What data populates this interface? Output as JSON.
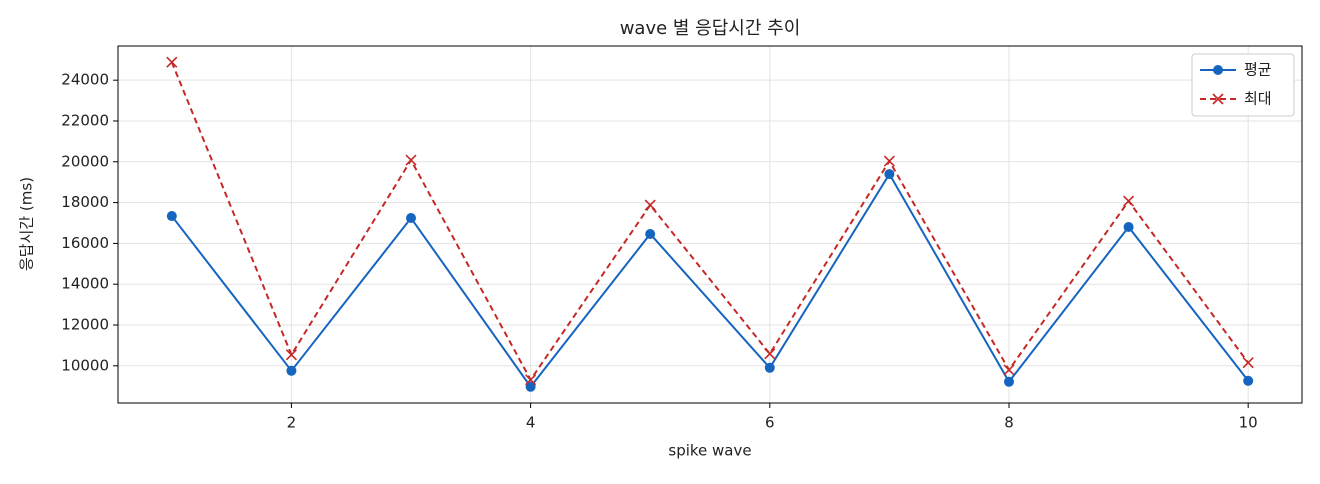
{
  "chart_data": {
    "type": "line",
    "title": "wave 별 응답시간 추이",
    "xlabel": "spike wave",
    "ylabel": "응답시간 (ms)",
    "x": [
      1,
      2,
      3,
      4,
      5,
      6,
      7,
      8,
      9,
      10
    ],
    "series": [
      {
        "name": "평균",
        "color": "#1565c0",
        "marker": "circle",
        "dashed": false,
        "values": [
          17340,
          9755,
          17244,
          8972,
          16461,
          9902,
          19398,
          9217,
          16804,
          9266
        ]
      },
      {
        "name": "최대",
        "color": "#c62828",
        "marker": "x",
        "dashed": true,
        "values": [
          24880,
          10540,
          20083,
          9315,
          17880,
          10590,
          20034,
          9800,
          18076,
          10150
        ]
      }
    ],
    "xlim": [
      0.55,
      10.45
    ],
    "ylim": [
      8177,
      25675
    ],
    "xticks": [
      2,
      4,
      6,
      8,
      10
    ],
    "yticks": [
      10000,
      12000,
      14000,
      16000,
      18000,
      20000,
      22000,
      24000
    ],
    "grid": true,
    "legend": "upper right"
  }
}
